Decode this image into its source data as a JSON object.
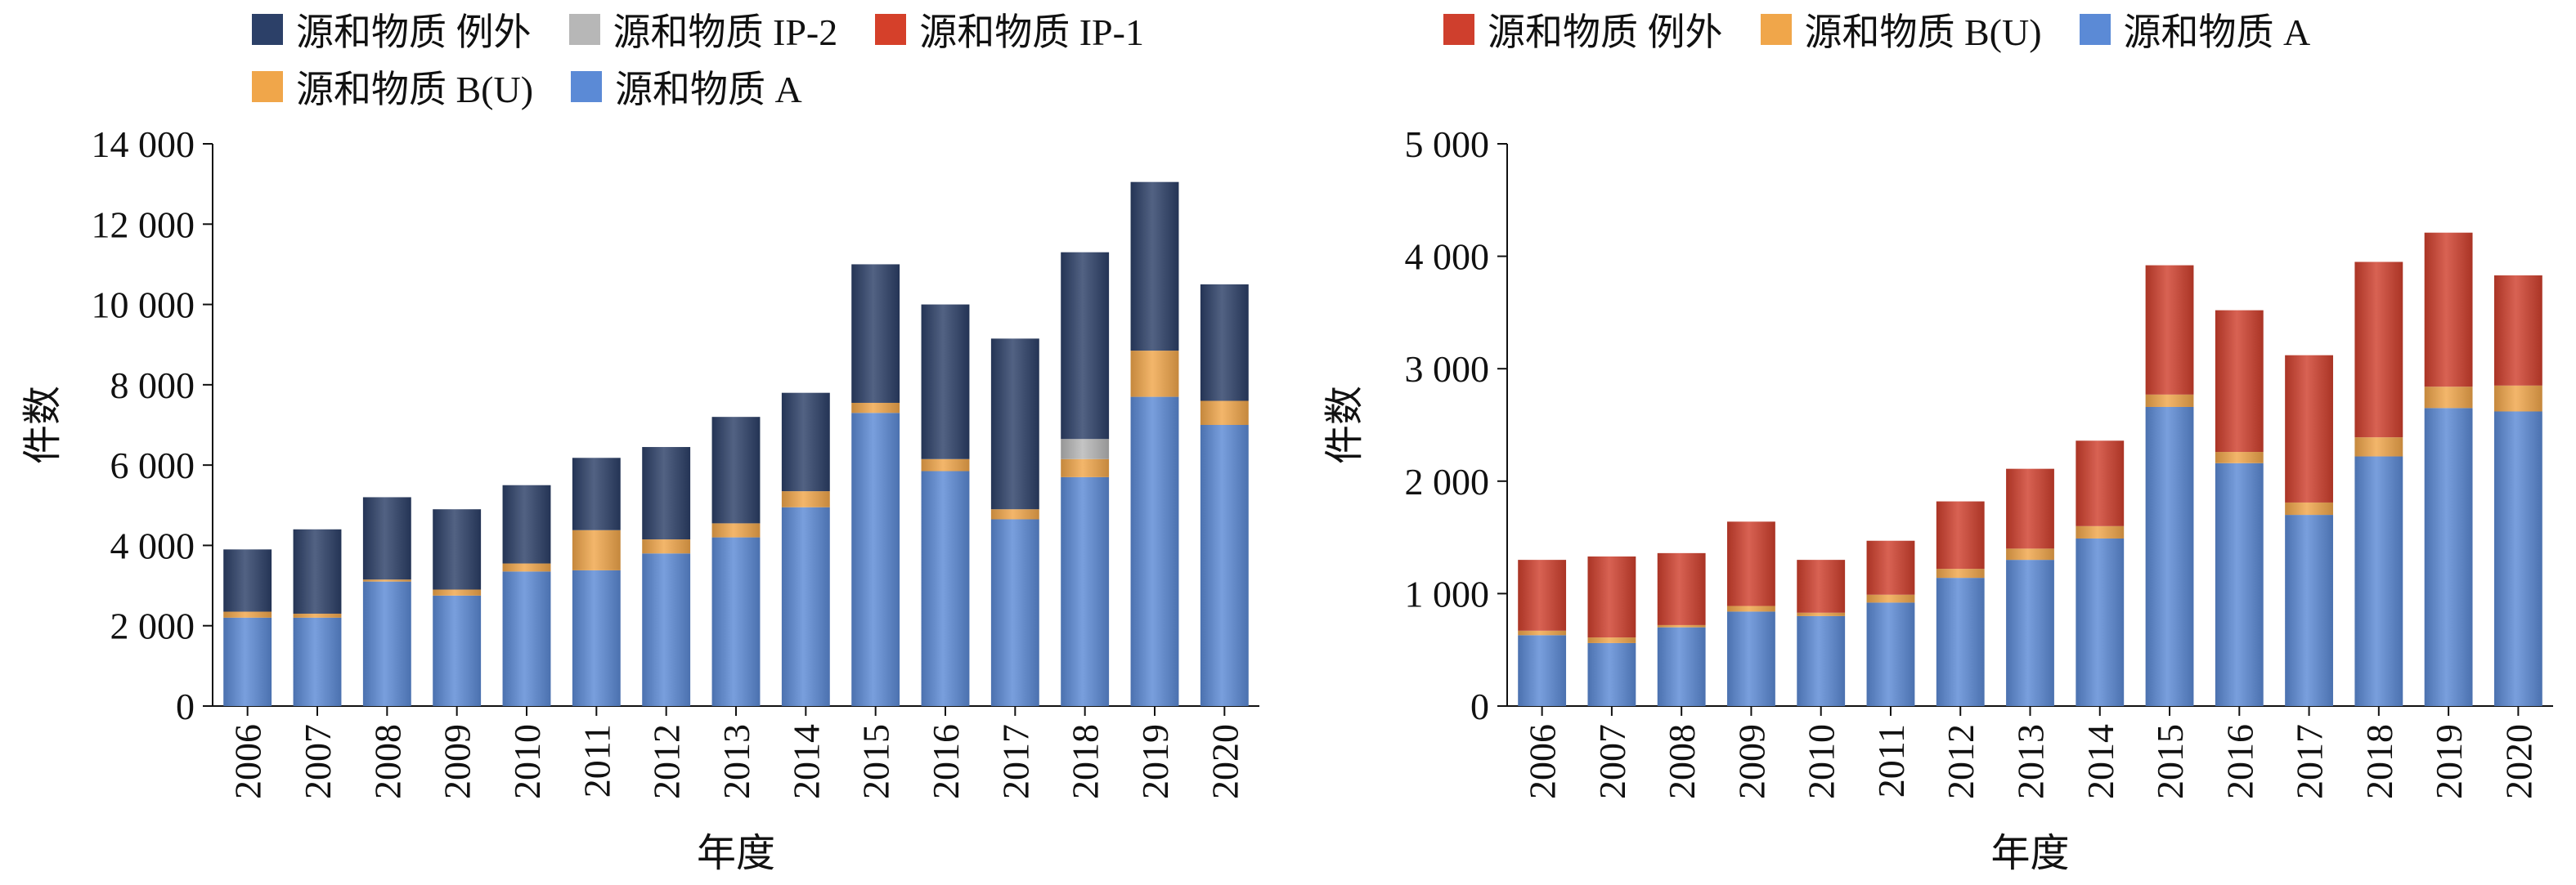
{
  "colors": {
    "A": "#5b8ad6",
    "BU": "#f0a64a",
    "IP1": "#d5402a",
    "IP2": "#b7b7b7",
    "exempt_left": "#2c4068",
    "exempt_right": "#cf3f2d"
  },
  "chart_data": [
    {
      "type": "bar",
      "stacked": true,
      "title": "",
      "xlabel": "年度",
      "ylabel": "件数",
      "ylim": [
        0,
        14000
      ],
      "yticks": [
        0,
        2000,
        4000,
        6000,
        8000,
        10000,
        12000,
        14000
      ],
      "ytick_labels": [
        "0",
        "2 000",
        "4 000",
        "6 000",
        "8 000",
        "10 000",
        "12 000",
        "14 000"
      ],
      "categories": [
        "2006",
        "2007",
        "2008",
        "2009",
        "2010",
        "2011",
        "2012",
        "2013",
        "2014",
        "2015",
        "2016",
        "2017",
        "2018",
        "2019",
        "2020"
      ],
      "legend": [
        "源和物质 例外",
        "源和物质 IP-2",
        "源和物质 IP-1",
        "源和物质 B(U)",
        "源和物质 A"
      ],
      "legend_position": "top",
      "series": [
        {
          "name": "源和物质 A",
          "color_key": "A",
          "values": [
            2200,
            2200,
            3100,
            2750,
            3350,
            3380,
            3800,
            4200,
            4950,
            7300,
            5850,
            4650,
            5700,
            7700,
            7000
          ]
        },
        {
          "name": "源和物质 B(U)",
          "color_key": "BU",
          "values": [
            150,
            100,
            50,
            150,
            200,
            1000,
            350,
            350,
            400,
            250,
            300,
            250,
            450,
            1150,
            600
          ]
        },
        {
          "name": "源和物质 IP-1",
          "color_key": "IP1",
          "values": [
            0,
            0,
            0,
            0,
            0,
            0,
            0,
            0,
            0,
            0,
            0,
            0,
            0,
            0,
            0
          ]
        },
        {
          "name": "源和物质 IP-2",
          "color_key": "IP2",
          "values": [
            0,
            0,
            0,
            0,
            0,
            0,
            0,
            0,
            0,
            0,
            0,
            0,
            500,
            0,
            0
          ]
        },
        {
          "name": "源和物质 例外",
          "color_key": "exempt_left",
          "values": [
            1550,
            2100,
            2050,
            2000,
            1950,
            1800,
            2300,
            2650,
            2450,
            3450,
            3850,
            4250,
            4650,
            4200,
            2900
          ]
        }
      ]
    },
    {
      "type": "bar",
      "stacked": true,
      "title": "",
      "xlabel": "年度",
      "ylabel": "件数",
      "ylim": [
        0,
        5000
      ],
      "yticks": [
        0,
        1000,
        2000,
        3000,
        4000,
        5000
      ],
      "ytick_labels": [
        "0",
        "1 000",
        "2 000",
        "3 000",
        "4 000",
        "5 000"
      ],
      "categories": [
        "2006",
        "2007",
        "2008",
        "2009",
        "2010",
        "2011",
        "2012",
        "2013",
        "2014",
        "2015",
        "2016",
        "2017",
        "2018",
        "2019",
        "2020"
      ],
      "legend": [
        "源和物质 例外",
        "源和物质 B(U)",
        "源和物质 A"
      ],
      "legend_position": "top",
      "series": [
        {
          "name": "源和物质 A",
          "color_key": "A",
          "values": [
            630,
            560,
            700,
            840,
            800,
            920,
            1140,
            1300,
            1490,
            2660,
            2160,
            1700,
            2220,
            2650,
            2620
          ]
        },
        {
          "name": "源和物质 B(U)",
          "color_key": "BU",
          "values": [
            40,
            50,
            20,
            50,
            30,
            70,
            80,
            100,
            110,
            110,
            100,
            110,
            170,
            190,
            230
          ]
        },
        {
          "name": "源和物质 例外",
          "color_key": "exempt_right",
          "values": [
            630,
            720,
            640,
            750,
            470,
            480,
            600,
            710,
            760,
            1150,
            1260,
            1310,
            1560,
            1370,
            980
          ]
        }
      ]
    }
  ]
}
